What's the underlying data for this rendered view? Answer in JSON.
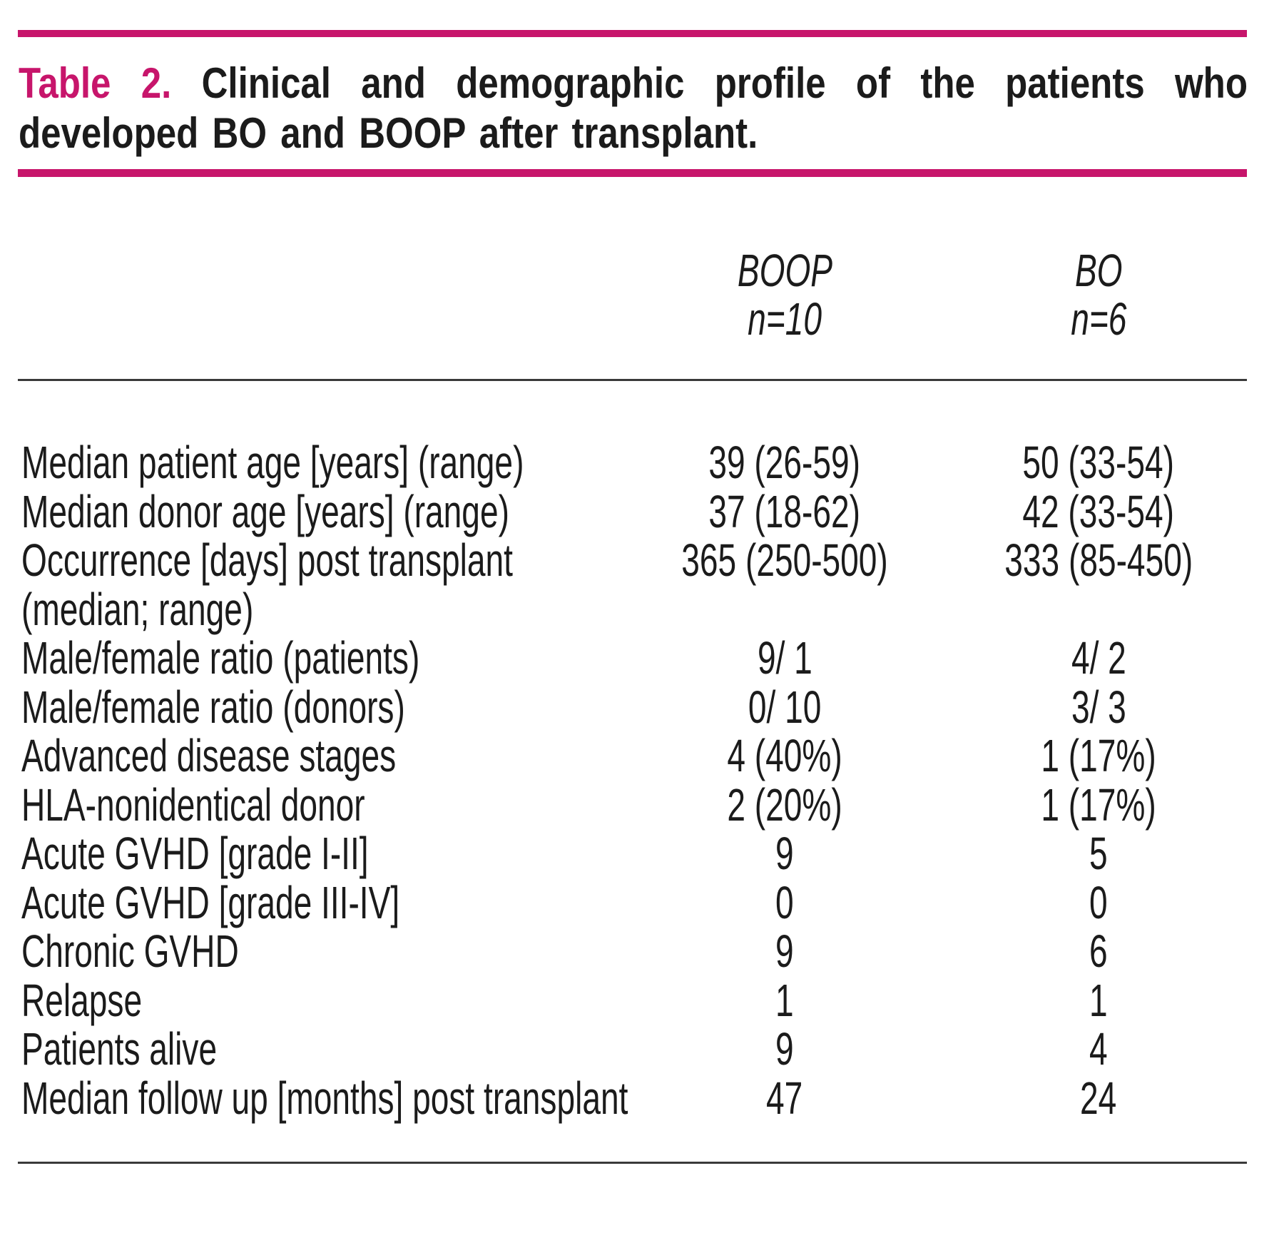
{
  "table": {
    "label": "Table 2.",
    "title_lines": [
      "Clinical and demographic profile of the patients who",
      "developed BO and BOOP after transplant."
    ],
    "columns": [
      {
        "name": "BOOP",
        "n": "n=10"
      },
      {
        "name": "BO",
        "n": "n=6"
      }
    ],
    "rows": [
      {
        "label": "Median patient age [years] (range)",
        "boop": "39 (26-59)",
        "bo": "50 (33-54)"
      },
      {
        "label": "Median donor age [years] (range)",
        "boop": "37 (18-62)",
        "bo": "42 (33-54)"
      },
      {
        "label": "Occurrence [days] post transplant",
        "boop": "365 (250-500)",
        "bo": "333 (85-450)"
      },
      {
        "label": "(median; range)",
        "boop": "",
        "bo": ""
      },
      {
        "label": "Male/female ratio (patients)",
        "boop": "9/ 1",
        "bo": "4/ 2"
      },
      {
        "label": "Male/female ratio (donors)",
        "boop": "0/ 10",
        "bo": "3/ 3"
      },
      {
        "label": "Advanced disease stages",
        "boop": "4 (40%)",
        "bo": "1 (17%)"
      },
      {
        "label": "HLA-nonidentical donor",
        "boop": "2 (20%)",
        "bo": "1 (17%)"
      },
      {
        "label": "Acute GVHD [grade I-II]",
        "boop": "9",
        "bo": "5"
      },
      {
        "label": "Acute GVHD [grade III-IV]",
        "boop": "0",
        "bo": "0"
      },
      {
        "label": "Chronic GVHD",
        "boop": "9",
        "bo": "6"
      },
      {
        "label": "Relapse",
        "boop": "1",
        "bo": "1"
      },
      {
        "label": "Patients alive",
        "boop": "9",
        "bo": "4"
      },
      {
        "label": "Median follow up [months] post transplant",
        "boop": "47",
        "bo": "24"
      }
    ],
    "colors": {
      "accent": "#c7156b",
      "rule_dark": "#3a3a3a",
      "text": "#1b1b1b"
    }
  }
}
